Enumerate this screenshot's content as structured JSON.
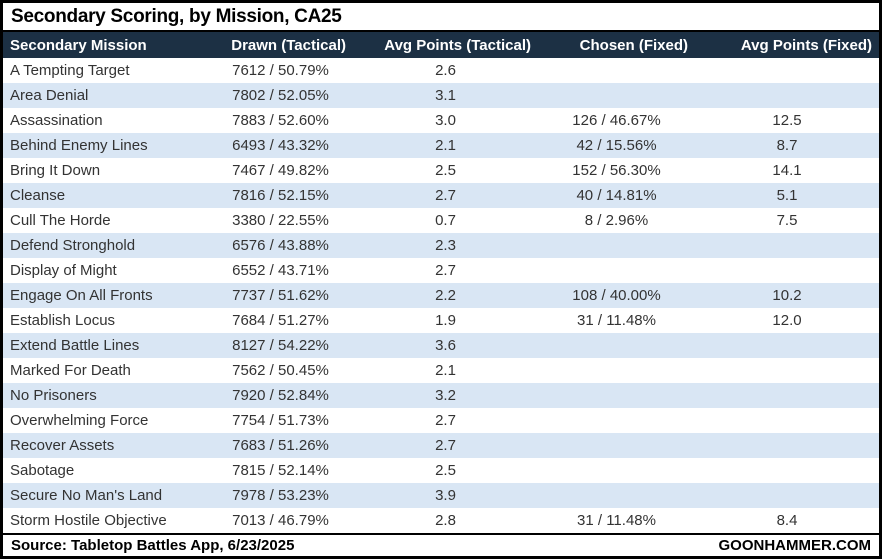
{
  "chart_data": {
    "type": "table",
    "title": "Secondary Scoring, by Mission, CA25",
    "columns": [
      "Secondary Mission",
      "Drawn (Tactical)",
      "Avg Points (Tactical)",
      "Chosen (Fixed)",
      "Avg Points (Fixed)"
    ],
    "rows": [
      [
        "A Tempting Target",
        "7612 / 50.79%",
        "2.6",
        "",
        ""
      ],
      [
        "Area Denial",
        "7802 / 52.05%",
        "3.1",
        "",
        ""
      ],
      [
        "Assassination",
        "7883 / 52.60%",
        "3.0",
        "126 / 46.67%",
        "12.5"
      ],
      [
        "Behind Enemy Lines",
        "6493 / 43.32%",
        "2.1",
        "42 / 15.56%",
        "8.7"
      ],
      [
        "Bring It Down",
        "7467 / 49.82%",
        "2.5",
        "152 / 56.30%",
        "14.1"
      ],
      [
        "Cleanse",
        "7816 / 52.15%",
        "2.7",
        "40 / 14.81%",
        "5.1"
      ],
      [
        "Cull The Horde",
        "3380 / 22.55%",
        "0.7",
        "8 / 2.96%",
        "7.5"
      ],
      [
        "Defend Stronghold",
        "6576 / 43.88%",
        "2.3",
        "",
        ""
      ],
      [
        "Display of Might",
        "6552 / 43.71%",
        "2.7",
        "",
        ""
      ],
      [
        "Engage On All Fronts",
        "7737 / 51.62%",
        "2.2",
        "108 / 40.00%",
        "10.2"
      ],
      [
        "Establish Locus",
        "7684 / 51.27%",
        "1.9",
        "31 / 11.48%",
        "12.0"
      ],
      [
        "Extend Battle Lines",
        "8127 / 54.22%",
        "3.6",
        "",
        ""
      ],
      [
        "Marked For Death",
        "7562 / 50.45%",
        "2.1",
        "",
        ""
      ],
      [
        "No Prisoners",
        "7920 / 52.84%",
        "3.2",
        "",
        ""
      ],
      [
        "Overwhelming Force",
        "7754 / 51.73%",
        "2.7",
        "",
        ""
      ],
      [
        "Recover Assets",
        "7683 / 51.26%",
        "2.7",
        "",
        ""
      ],
      [
        "Sabotage",
        "7815 / 52.14%",
        "2.5",
        "",
        ""
      ],
      [
        "Secure No Man's Land",
        "7978 / 53.23%",
        "3.9",
        "",
        ""
      ],
      [
        "Storm Hostile Objective",
        "7013 / 46.79%",
        "2.8",
        "31 / 11.48%",
        "8.4"
      ]
    ],
    "layout": {
      "grid": false,
      "row_striping": "alternate",
      "header_position": "top"
    }
  },
  "footer": {
    "source": "Source: Tabletop Battles App, 6/23/2025",
    "site": "GOONHAMMER.COM"
  },
  "colors": {
    "header_bg": "#1c3044",
    "row_alt_bg": "#d9e6f4",
    "border": "#000000",
    "body_text": "#333333"
  }
}
